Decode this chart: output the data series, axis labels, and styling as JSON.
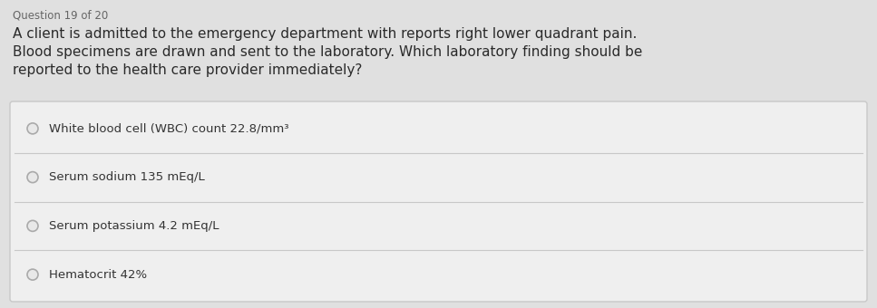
{
  "question_label": "Question 19 of 20",
  "question_text_lines": [
    "A client is admitted to the emergency department with reports right lower quadrant pain.",
    "Blood specimens are drawn and sent to the laboratory. Which laboratory finding should be",
    "reported to the health care provider immediately?"
  ],
  "options": [
    "White blood cell (WBC) count 22.8/mm³",
    "Serum sodium 135 mEq/L",
    "Serum potassium 4.2 mEq/L",
    "Hematocrit 42%"
  ],
  "bg_color": "#e0e0e0",
  "box_bg_color": "#efefef",
  "box_border_color": "#c8c8c8",
  "text_color": "#2a2a2a",
  "question_label_color": "#666666",
  "option_text_color": "#333333",
  "circle_edge_color": "#aaaaaa",
  "circle_face_color": "#e8e8e8",
  "fig_width": 9.67,
  "fig_height": 3.4,
  "dpi": 100
}
